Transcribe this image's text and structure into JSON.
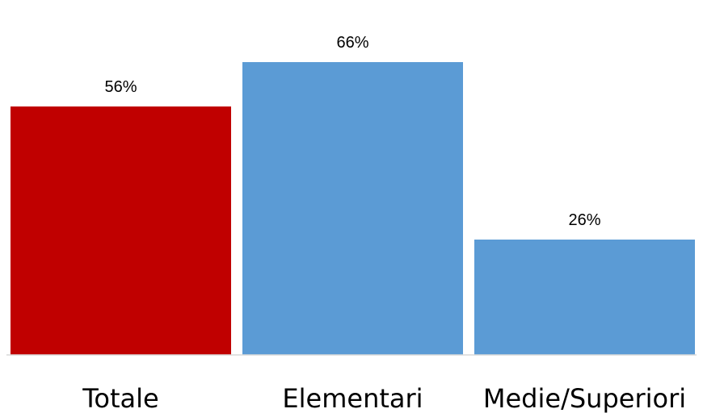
{
  "chart_data": {
    "type": "bar",
    "categories": [
      "Totale",
      "Elementari",
      "Medie/Superiori"
    ],
    "values": [
      56,
      66,
      26
    ],
    "value_labels": [
      "56%",
      "66%",
      "26%"
    ],
    "value_unit": "%",
    "ylim": [
      0,
      100
    ],
    "grid": false,
    "legend": "none",
    "colors": [
      "#C00000",
      "#5B9BD5",
      "#5B9BD5"
    ],
    "axis_color": "#D9D9D9"
  }
}
